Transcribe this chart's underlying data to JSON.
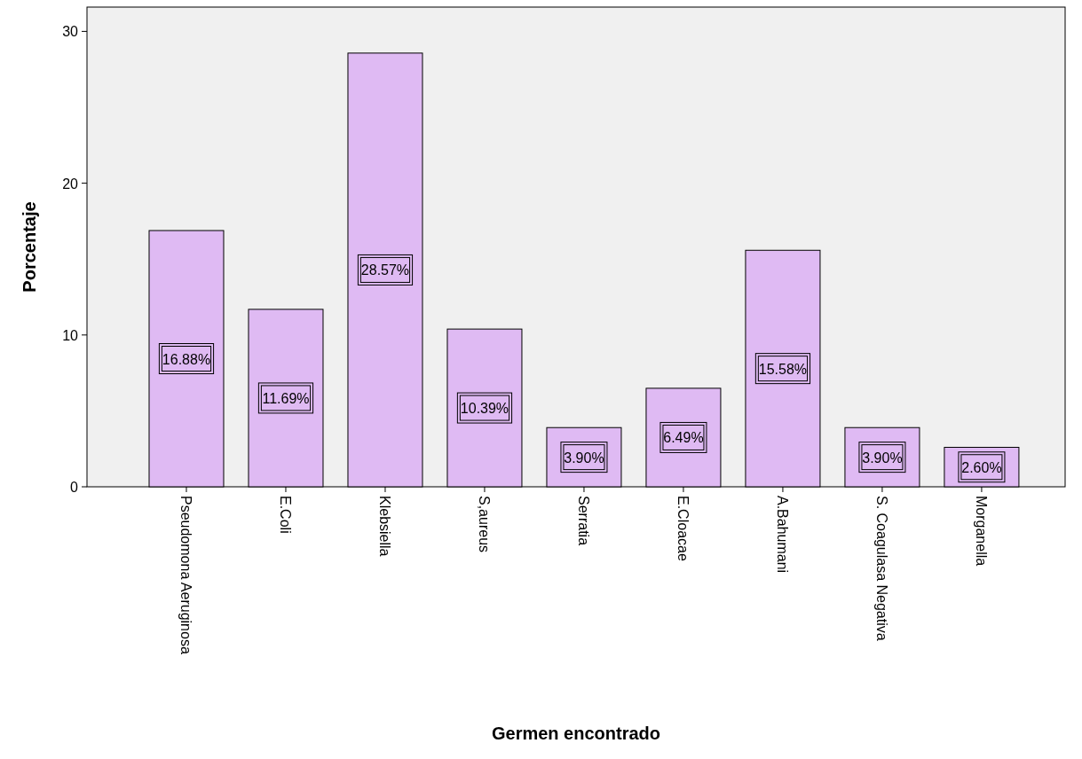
{
  "chart_data": {
    "type": "bar",
    "xlabel": "Germen encontrado",
    "ylabel": "Porcentaje",
    "categories": [
      "Pseudomona Aeruginosa",
      "E.Coli",
      "Klebsiella",
      "S,aureus",
      "Serratia",
      "E.Cloacae",
      "A.Bahumani",
      "S. Coagulasa Negativa",
      "Morganella"
    ],
    "values": [
      16.88,
      11.69,
      28.57,
      10.39,
      3.9,
      6.49,
      15.58,
      3.9,
      2.6
    ],
    "value_labels": [
      "16.88%",
      "11.69%",
      "28.57%",
      "10.39%",
      "3.90%",
      "6.49%",
      "15.58%",
      "3.90%",
      "2.60%"
    ],
    "color": "#dfbaf3",
    "ylim": [
      0,
      31.6
    ],
    "yticks": [
      0,
      10,
      20,
      30
    ],
    "grid": false
  }
}
